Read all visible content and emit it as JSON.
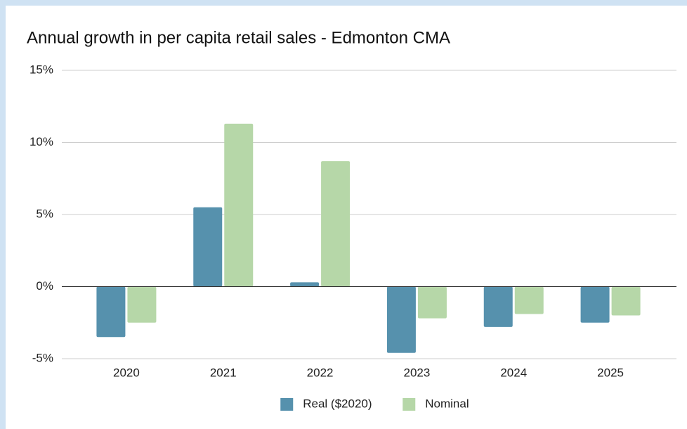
{
  "chart_data": {
    "type": "bar",
    "title": "Annual growth in per capita retail sales - Edmonton CMA",
    "categories": [
      "2020",
      "2021",
      "2022",
      "2023",
      "2024",
      "2025"
    ],
    "series": [
      {
        "name": "Real ($2020)",
        "color": "#5691ad",
        "values": [
          -3.5,
          5.5,
          0.3,
          -4.6,
          -2.8,
          -2.5
        ]
      },
      {
        "name": "Nominal",
        "color": "#b6d7a8",
        "values": [
          -2.5,
          11.3,
          8.7,
          -2.2,
          -1.9,
          -2.0
        ]
      }
    ],
    "ylim": [
      -5,
      15
    ],
    "yticks": [
      {
        "value": -5,
        "label": "-5%"
      },
      {
        "value": 0,
        "label": "0%"
      },
      {
        "value": 5,
        "label": "5%"
      },
      {
        "value": 10,
        "label": "10%"
      },
      {
        "value": 15,
        "label": "15%"
      }
    ],
    "grid": true,
    "legend": "bottom"
  }
}
